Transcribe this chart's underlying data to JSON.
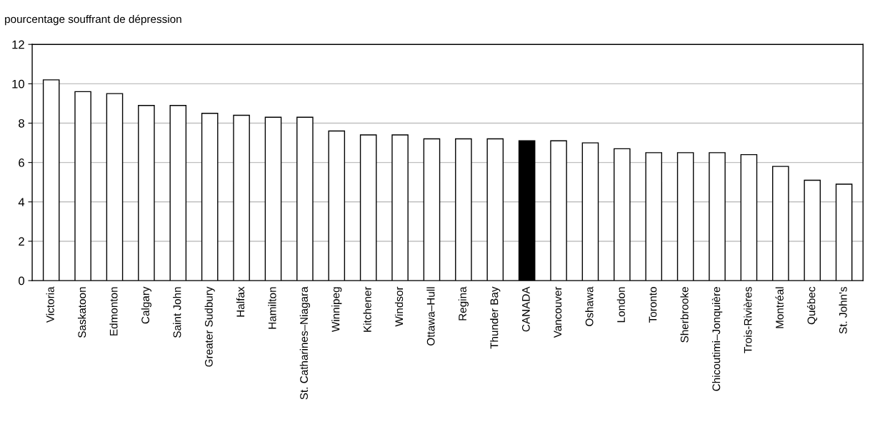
{
  "chart_data": {
    "type": "bar",
    "ylabel": "pourcentage souffrant de dépression",
    "categories": [
      "Victoria",
      "Saskatoon",
      "Edmonton",
      "Calgary",
      "Saint John",
      "Greater Sudbury",
      "Halfax",
      "Hamilton",
      "St. Catharines–Niagara",
      "Winnipeg",
      "Kitchener",
      "Windsor",
      "Ottawa–Hull",
      "Regina",
      "Thunder Bay",
      "CANADA",
      "Vancouver",
      "Oshawa",
      "London",
      "Toronto",
      "Sherbrooke",
      "Chicoutimi–Jonquière",
      "Trois-Rivières",
      "Montréal",
      "Québec",
      "St. John's"
    ],
    "values": [
      10.2,
      9.6,
      9.5,
      8.9,
      8.9,
      8.5,
      8.4,
      8.3,
      8.3,
      7.6,
      7.4,
      7.4,
      7.2,
      7.2,
      7.2,
      7.1,
      7.1,
      7.0,
      6.7,
      6.5,
      6.5,
      6.5,
      6.4,
      5.8,
      5.1,
      4.9
    ],
    "colors": [
      "#ffffff",
      "#ffffff",
      "#ffffff",
      "#ffffff",
      "#ffffff",
      "#ffffff",
      "#ffffff",
      "#ffffff",
      "#ffffff",
      "#ffffff",
      "#ffffff",
      "#ffffff",
      "#ffffff",
      "#ffffff",
      "#ffffff",
      "#000000",
      "#ffffff",
      "#ffffff",
      "#ffffff",
      "#ffffff",
      "#ffffff",
      "#ffffff",
      "#ffffff",
      "#ffffff",
      "#ffffff",
      "#ffffff"
    ],
    "ylim": [
      0,
      12
    ],
    "yticks": [
      0,
      2,
      4,
      6,
      8,
      10,
      12
    ],
    "grid": "y",
    "legend": false
  }
}
